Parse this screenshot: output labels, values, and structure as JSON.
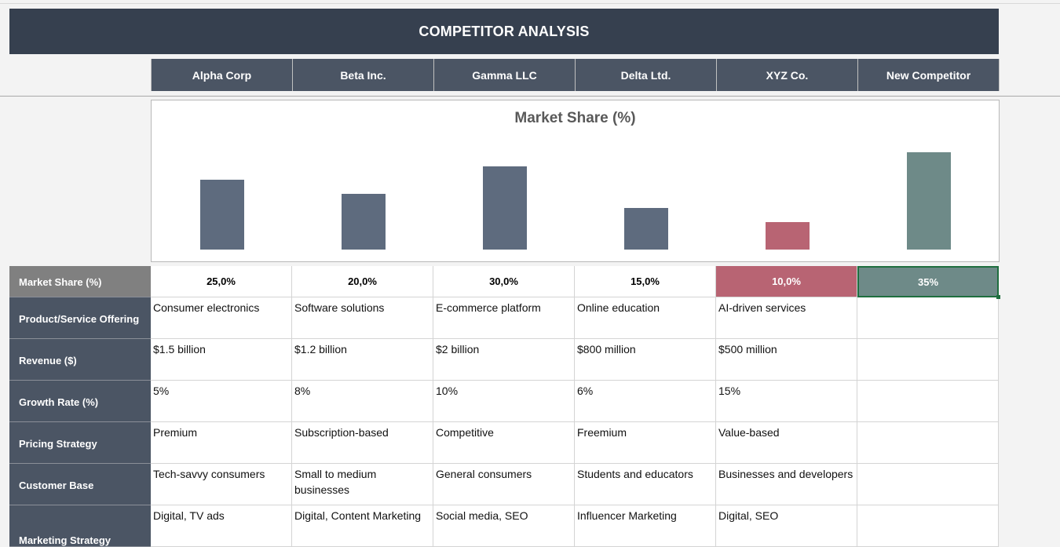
{
  "title": "COMPETITOR ANALYSIS",
  "competitors": [
    "Alpha Corp",
    "Beta Inc.",
    "Gamma LLC",
    "Delta Ltd.",
    "XYZ Co.",
    "New Competitor"
  ],
  "chart_data": {
    "type": "bar",
    "title": "Market Share (%)",
    "categories": [
      "Alpha Corp",
      "Beta Inc.",
      "Gamma LLC",
      "Delta Ltd.",
      "XYZ Co.",
      "New Competitor"
    ],
    "values": [
      25,
      20,
      30,
      15,
      10,
      35
    ],
    "colors": [
      "#5e6b7e",
      "#5e6b7e",
      "#5e6b7e",
      "#5e6b7e",
      "#b86473",
      "#6e8a88"
    ],
    "ylim": [
      0,
      45
    ]
  },
  "rows": {
    "market_share": {
      "label": "Market Share (%)",
      "values": [
        "25,0%",
        "20,0%",
        "30,0%",
        "15,0%",
        "10,0%",
        "35%"
      ]
    },
    "offering": {
      "label": "Product/Service Offering",
      "values": [
        "Consumer electronics",
        "Software solutions",
        "E-commerce platform",
        "Online education",
        "AI-driven services",
        ""
      ]
    },
    "revenue": {
      "label": "Revenue ($)",
      "values": [
        "$1.5 billion",
        "$1.2 billion",
        "$2 billion",
        "$800 million",
        "$500 million",
        ""
      ]
    },
    "growth": {
      "label": "Growth Rate (%)",
      "values": [
        "5%",
        "8%",
        "10%",
        "6%",
        "15%",
        ""
      ]
    },
    "pricing": {
      "label": "Pricing Strategy",
      "values": [
        "Premium",
        "Subscription-based",
        "Competitive",
        "Freemium",
        "Value-based",
        ""
      ]
    },
    "customers": {
      "label": "Customer Base",
      "values": [
        "Tech-savvy consumers",
        "Small to medium businesses",
        "General consumers",
        "Students and educators",
        "Businesses and developers",
        ""
      ]
    },
    "marketing": {
      "label": "Marketing Strategy",
      "values": [
        "Digital, TV ads",
        "Digital, Content Marketing",
        "Social media, SEO",
        "Influencer Marketing",
        "Digital, SEO",
        ""
      ]
    }
  }
}
